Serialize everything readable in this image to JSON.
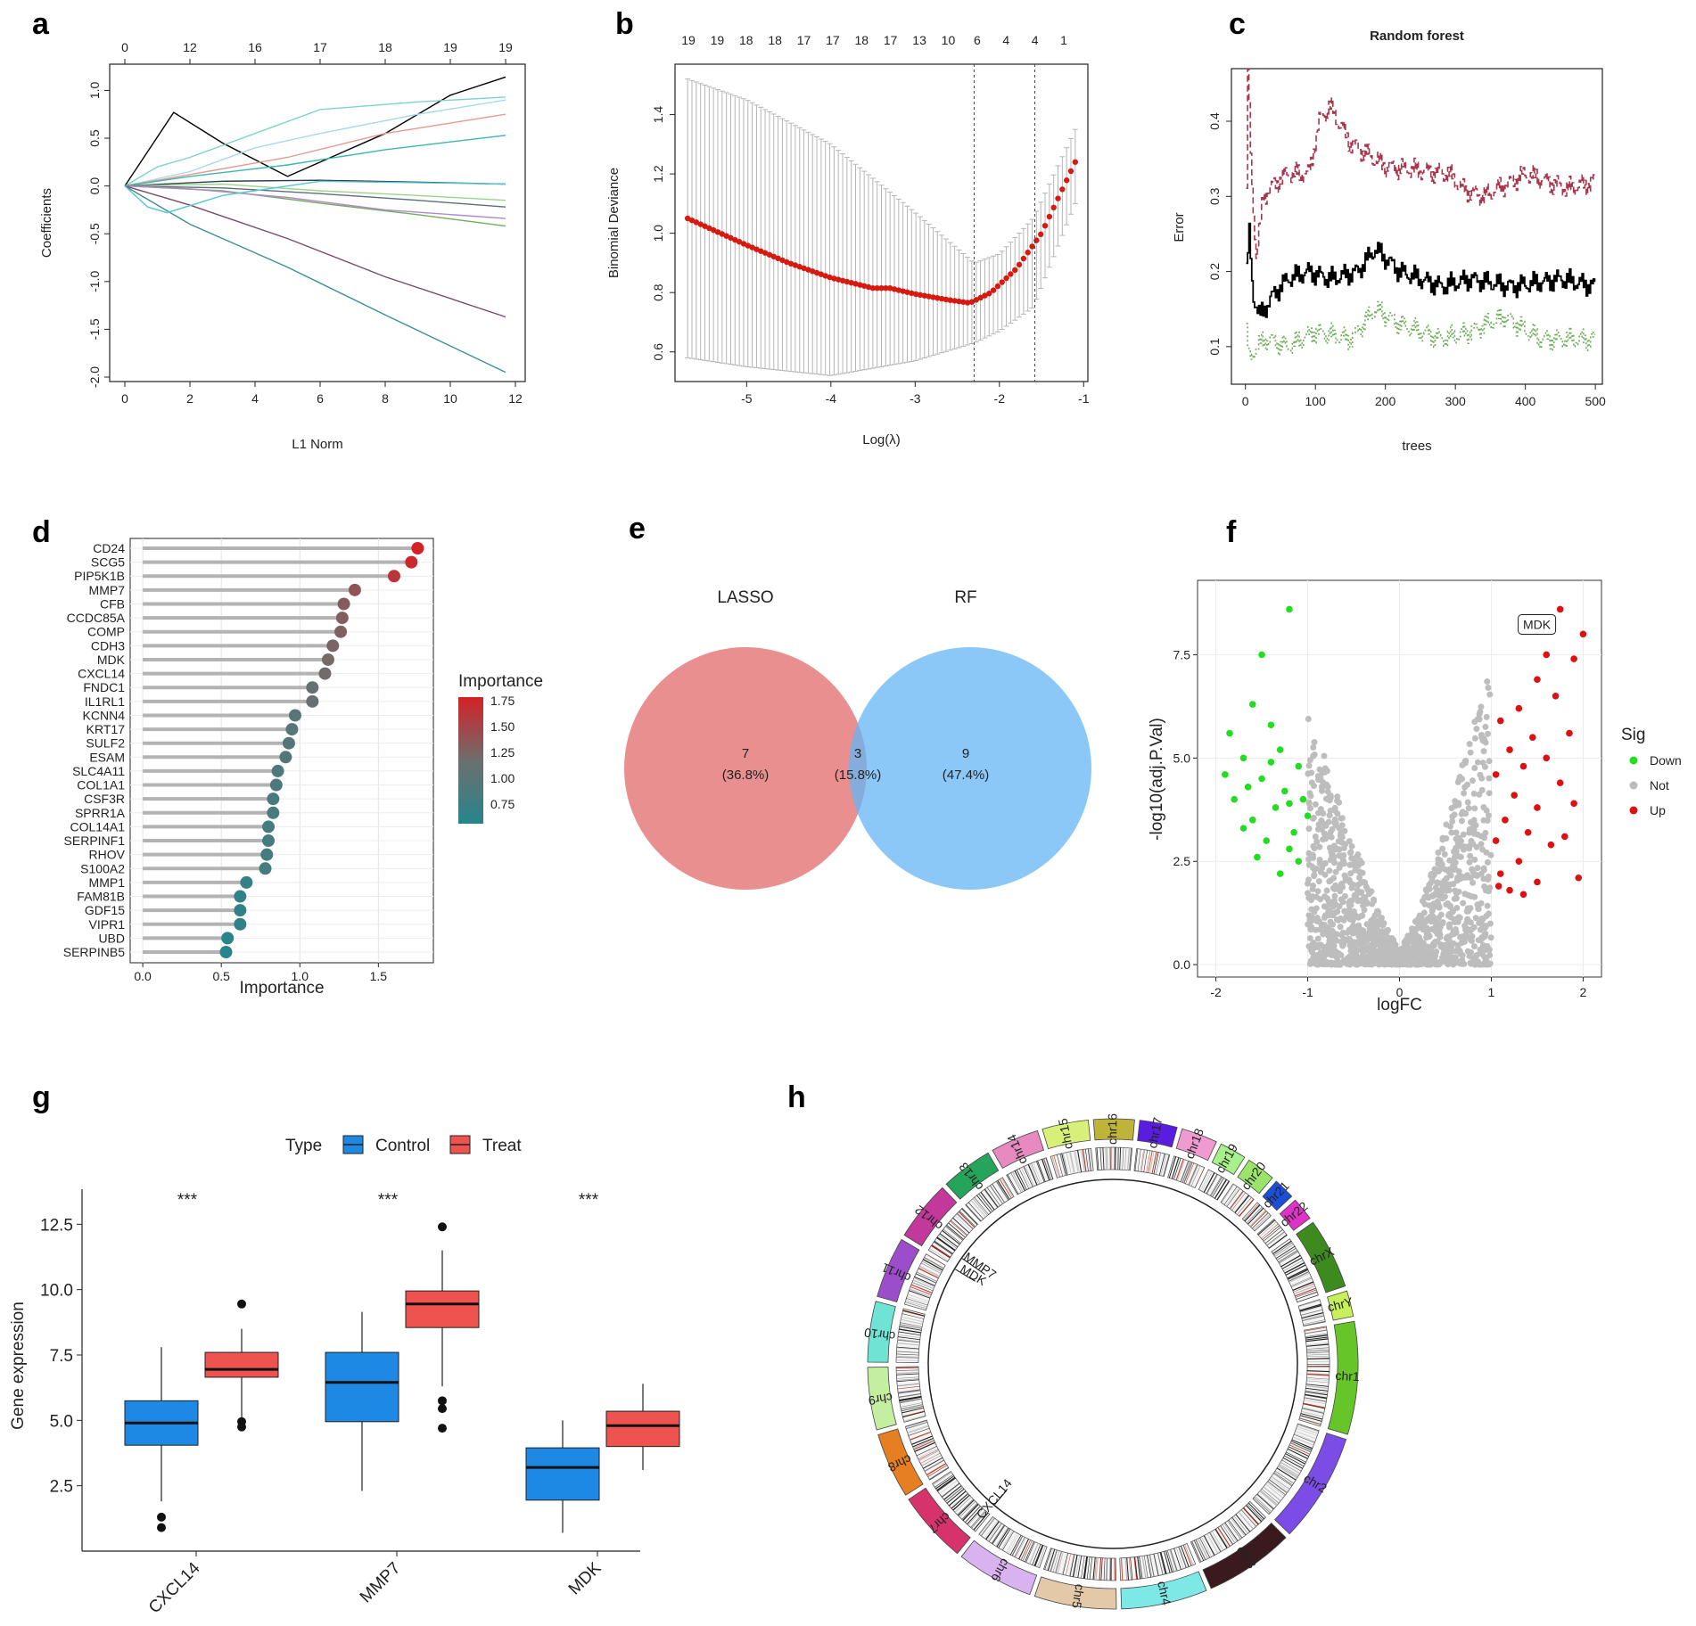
{
  "panel_labels": [
    "a",
    "b",
    "c",
    "d",
    "e",
    "f",
    "g",
    "h"
  ],
  "chart_data": [
    {
      "panel": "a",
      "type": "line",
      "title": "",
      "xlabel": "L1 Norm",
      "ylabel": "Coefficients",
      "xlim": [
        0,
        12
      ],
      "ylim": [
        -2.0,
        1.2
      ],
      "xticks": [
        "0",
        "2",
        "4",
        "6",
        "8",
        "10",
        "12"
      ],
      "yticks": [
        "-2.0",
        "-1.5",
        "-1.0",
        "-0.5",
        "0.0",
        "0.5",
        "1.0"
      ],
      "top_ticks": [
        "0",
        "12",
        "16",
        "17",
        "18",
        "19",
        "19"
      ],
      "series": [
        {
          "name": "s1",
          "color": "#000000",
          "x": [
            0,
            1.5,
            3,
            5,
            8,
            10,
            11.7
          ],
          "y": [
            0,
            0.77,
            0.45,
            0.1,
            0.55,
            0.95,
            1.14
          ]
        },
        {
          "name": "s2",
          "color": "#7fd3c9",
          "x": [
            0,
            1,
            2,
            4,
            6,
            9,
            11.7
          ],
          "y": [
            0,
            0.2,
            0.3,
            0.55,
            0.8,
            0.88,
            0.93
          ]
        },
        {
          "name": "s3",
          "color": "#a7d8ee",
          "x": [
            0,
            2,
            4,
            6,
            9,
            11.7
          ],
          "y": [
            0,
            0.15,
            0.4,
            0.55,
            0.75,
            0.9
          ]
        },
        {
          "name": "s4",
          "color": "#e39a8f",
          "x": [
            0,
            2,
            5,
            8,
            11.7
          ],
          "y": [
            0,
            0.12,
            0.3,
            0.55,
            0.75
          ]
        },
        {
          "name": "s5",
          "color": "#3fb5b0",
          "x": [
            0,
            2,
            5,
            8,
            11.7
          ],
          "y": [
            0,
            0.1,
            0.22,
            0.38,
            0.53
          ]
        },
        {
          "name": "s6",
          "color": "#2c3e50",
          "x": [
            0,
            3,
            6,
            9,
            11.7
          ],
          "y": [
            0,
            0.05,
            0.06,
            0.04,
            0.02
          ]
        },
        {
          "name": "s7",
          "color": "#9bd48a",
          "x": [
            0,
            3,
            6,
            9,
            11.7
          ],
          "y": [
            0,
            0.02,
            -0.05,
            -0.1,
            -0.15
          ]
        },
        {
          "name": "s8",
          "color": "#5d6d7e",
          "x": [
            0,
            3,
            6,
            9,
            11.7
          ],
          "y": [
            0,
            -0.02,
            -0.08,
            -0.15,
            -0.22
          ]
        },
        {
          "name": "s9",
          "color": "#6fae5b",
          "x": [
            0,
            3,
            6,
            9,
            11.7
          ],
          "y": [
            0,
            -0.05,
            -0.18,
            -0.3,
            -0.42
          ]
        },
        {
          "name": "s10",
          "color": "#b388c9",
          "x": [
            0,
            2,
            5,
            8,
            11.7
          ],
          "y": [
            0,
            -0.03,
            -0.12,
            -0.25,
            -0.34
          ]
        },
        {
          "name": "s11",
          "color": "#7c4a6b",
          "x": [
            0,
            2,
            5,
            8,
            11.7
          ],
          "y": [
            0,
            -0.2,
            -0.55,
            -0.95,
            -1.37
          ]
        },
        {
          "name": "s12",
          "color": "#3d8f9a",
          "x": [
            0,
            2,
            5,
            8,
            11.7
          ],
          "y": [
            0,
            -0.4,
            -0.85,
            -1.35,
            -1.95
          ]
        },
        {
          "name": "s13",
          "color": "#58c7d6",
          "x": [
            0,
            0.7,
            1.3,
            3,
            6,
            11.7
          ],
          "y": [
            0,
            -0.22,
            -0.28,
            -0.1,
            0.05,
            0.02
          ]
        }
      ]
    },
    {
      "panel": "b",
      "type": "line",
      "title": "",
      "xlabel": "Log(λ)",
      "ylabel": "Binomial Deviance",
      "xlim": [
        -5.85,
        -0.95
      ],
      "ylim": [
        0.5,
        1.57
      ],
      "xticks": [
        "-5",
        "-4",
        "-3",
        "-2",
        "-1"
      ],
      "yticks": [
        "0.6",
        "0.8",
        "1.0",
        "1.2",
        "1.4"
      ],
      "top_ticks": [
        "19",
        "19",
        "18",
        "18",
        "17",
        "17",
        "18",
        "17",
        "13",
        "10",
        "6",
        "4",
        "4",
        "1"
      ],
      "vlines": [
        -2.3,
        -1.58
      ],
      "curve": {
        "x": [
          -5.7,
          -5.0,
          -4.5,
          -4.0,
          -3.5,
          -3.3,
          -3.0,
          -2.6,
          -2.35,
          -2.1,
          -1.8,
          -1.5,
          -1.25,
          -1.1
        ],
        "y": [
          1.05,
          0.96,
          0.9,
          0.85,
          0.815,
          0.815,
          0.795,
          0.775,
          0.765,
          0.8,
          0.88,
          1.0,
          1.15,
          1.24
        ]
      },
      "err_upper": {
        "x": [
          -5.7,
          -5.0,
          -4.0,
          -3.0,
          -2.3,
          -2.0,
          -1.6,
          -1.1
        ],
        "y": [
          1.52,
          1.45,
          1.3,
          1.07,
          0.9,
          0.93,
          1.05,
          1.35
        ]
      },
      "err_lower": {
        "x": [
          -5.7,
          -5.0,
          -4.0,
          -3.0,
          -2.3,
          -2.0,
          -1.6,
          -1.1
        ],
        "y": [
          0.58,
          0.55,
          0.52,
          0.57,
          0.63,
          0.67,
          0.75,
          1.1
        ]
      }
    },
    {
      "panel": "c",
      "type": "line",
      "title": "Random forest",
      "xlabel": "trees",
      "ylabel": "Error",
      "xlim": [
        -20,
        510
      ],
      "ylim": [
        0.05,
        0.47
      ],
      "xticks": [
        "0",
        "100",
        "200",
        "300",
        "400",
        "500"
      ],
      "yticks": [
        "0.1",
        "0.2",
        "0.3",
        "0.4"
      ],
      "series": [
        {
          "name": "oob",
          "color": "#000000",
          "x": [
            1,
            5,
            10,
            20,
            40,
            60,
            90,
            120,
            160,
            185,
            220,
            280,
            320,
            380,
            450,
            500
          ],
          "y": [
            0.2,
            0.25,
            0.17,
            0.14,
            0.17,
            0.19,
            0.2,
            0.19,
            0.2,
            0.23,
            0.2,
            0.18,
            0.19,
            0.18,
            0.19,
            0.18
          ]
        },
        {
          "name": "class1",
          "color": "#a8374e",
          "x": [
            1,
            3,
            8,
            15,
            25,
            45,
            60,
            90,
            105,
            120,
            150,
            200,
            290,
            310,
            340,
            400,
            460,
            500
          ],
          "y": [
            0.3,
            0.47,
            0.33,
            0.22,
            0.3,
            0.32,
            0.33,
            0.33,
            0.4,
            0.42,
            0.37,
            0.34,
            0.33,
            0.31,
            0.3,
            0.33,
            0.31,
            0.32
          ]
        },
        {
          "name": "class2",
          "color": "#6fae5b",
          "x": [
            1,
            5,
            15,
            30,
            60,
            100,
            150,
            185,
            220,
            280,
            320,
            370,
            420,
            500
          ],
          "y": [
            0.12,
            0.08,
            0.1,
            0.11,
            0.1,
            0.12,
            0.11,
            0.15,
            0.13,
            0.11,
            0.12,
            0.14,
            0.11,
            0.11
          ]
        }
      ]
    },
    {
      "panel": "d",
      "type": "lollipop",
      "title": "",
      "xlabel": "Importance",
      "ylabel": "",
      "xlim": [
        -0.08,
        1.85
      ],
      "xticks": [
        "0.0",
        "0.5",
        "1.0",
        "1.5"
      ],
      "legend_title": "Importance",
      "legend_ticks": [
        "1.75",
        "1.50",
        "1.25",
        "1.00",
        "0.75"
      ],
      "genes": [
        "CD24",
        "SCG5",
        "PIP5K1B",
        "MMP7",
        "CFB",
        "CCDC85A",
        "COMP",
        "CDH3",
        "MDK",
        "CXCL14",
        "FNDC1",
        "IL1RL1",
        "KCNN4",
        "KRT17",
        "SULF2",
        "ESAM",
        "SLC4A11",
        "COL1A1",
        "CSF3R",
        "SPRR1A",
        "COL14A1",
        "SERPINF1",
        "RHOV",
        "S100A2",
        "MMP1",
        "FAM81B",
        "GDF15",
        "VIPR1",
        "UBD",
        "SERPINB5"
      ],
      "values": [
        1.75,
        1.71,
        1.6,
        1.35,
        1.28,
        1.27,
        1.26,
        1.21,
        1.18,
        1.16,
        1.08,
        1.08,
        0.97,
        0.95,
        0.93,
        0.91,
        0.86,
        0.85,
        0.83,
        0.83,
        0.8,
        0.8,
        0.79,
        0.78,
        0.66,
        0.62,
        0.62,
        0.62,
        0.54,
        0.53
      ]
    },
    {
      "panel": "e",
      "type": "venn",
      "sets": [
        "LASSO",
        "RF"
      ],
      "regions": [
        {
          "count": "7",
          "pct": "(36.8%)"
        },
        {
          "count": "3",
          "pct": "(15.8%)"
        },
        {
          "count": "9",
          "pct": "(47.4%)"
        }
      ],
      "colors": {
        "LASSO": "#e57373",
        "RF": "#64b5f6",
        "LASSO_label": "#a31515",
        "RF_label": "#2e6fae"
      }
    },
    {
      "panel": "f",
      "type": "scatter",
      "title": "",
      "xlabel": "logFC",
      "ylabel": "-log10(adj.P.Val)",
      "xlim": [
        -2.2,
        2.2
      ],
      "ylim": [
        -0.3,
        9.3
      ],
      "xticks": [
        "-2",
        "-1",
        "0",
        "1",
        "2"
      ],
      "yticks": [
        "0.0",
        "2.5",
        "5.0",
        "7.5"
      ],
      "legend_title": "Sig",
      "legend": [
        {
          "name": "Down",
          "color": "#22dd22"
        },
        {
          "name": "Not",
          "color": "#bbbbbb"
        },
        {
          "name": "Up",
          "color": "#dd1111"
        }
      ],
      "annotation": {
        "text": "MDK",
        "x": 1.72,
        "y": 8.6
      },
      "down_points": [
        [
          -1.2,
          8.6
        ],
        [
          -1.5,
          7.5
        ],
        [
          -1.6,
          6.3
        ],
        [
          -1.4,
          5.8
        ],
        [
          -1.3,
          5.2
        ],
        [
          -1.7,
          5.0
        ],
        [
          -1.5,
          4.5
        ],
        [
          -1.1,
          4.8
        ],
        [
          -1.25,
          4.2
        ],
        [
          -1.8,
          4.0
        ],
        [
          -1.35,
          3.8
        ],
        [
          -1.05,
          4.0
        ],
        [
          -1.6,
          3.5
        ],
        [
          -1.15,
          3.2
        ],
        [
          -1.45,
          3.0
        ],
        [
          -1.7,
          3.3
        ],
        [
          -1.2,
          2.8
        ],
        [
          -1.55,
          2.6
        ],
        [
          -1.1,
          2.5
        ],
        [
          -1.3,
          2.2
        ],
        [
          -1.9,
          4.6
        ],
        [
          -1.0,
          3.6
        ],
        [
          -1.4,
          4.9
        ],
        [
          -1.65,
          4.3
        ],
        [
          -1.2,
          3.9
        ],
        [
          -1.85,
          5.6
        ]
      ],
      "up_points": [
        [
          1.75,
          8.6
        ],
        [
          2.0,
          8.0
        ],
        [
          1.6,
          7.5
        ],
        [
          1.9,
          7.4
        ],
        [
          1.5,
          6.9
        ],
        [
          1.7,
          6.5
        ],
        [
          1.3,
          6.2
        ],
        [
          1.1,
          5.9
        ],
        [
          1.45,
          5.5
        ],
        [
          1.85,
          5.6
        ],
        [
          1.2,
          5.2
        ],
        [
          1.6,
          5.0
        ],
        [
          1.35,
          4.8
        ],
        [
          1.05,
          4.6
        ],
        [
          1.75,
          4.4
        ],
        [
          1.25,
          4.1
        ],
        [
          1.5,
          3.8
        ],
        [
          1.9,
          3.9
        ],
        [
          1.15,
          3.5
        ],
        [
          1.4,
          3.2
        ],
        [
          1.05,
          3.0
        ],
        [
          1.65,
          2.9
        ],
        [
          1.3,
          2.5
        ],
        [
          1.1,
          2.2
        ],
        [
          1.5,
          2.0
        ],
        [
          1.95,
          2.1
        ],
        [
          1.2,
          1.8
        ],
        [
          1.08,
          1.9
        ],
        [
          1.35,
          1.7
        ],
        [
          1.8,
          3.1
        ]
      ],
      "not_envelope": {
        "x": [
          -1.0,
          -0.8,
          -0.6,
          -0.4,
          -0.2,
          0.0,
          0.2,
          0.4,
          0.6,
          0.8,
          1.0
        ],
        "y": [
          6.2,
          5.0,
          3.6,
          2.4,
          1.2,
          0.3,
          1.2,
          2.6,
          4.2,
          5.8,
          7.4
        ]
      }
    },
    {
      "panel": "g",
      "type": "box",
      "title": "",
      "xlabel": "",
      "ylabel": "Gene expression",
      "ylim": [
        0,
        13.5
      ],
      "yticks": [
        "2.5",
        "5.0",
        "7.5",
        "10.0",
        "12.5"
      ],
      "legend_title": "Type",
      "legend": [
        {
          "name": "Control",
          "color": "#1e88e5"
        },
        {
          "name": "Treat",
          "color": "#ef5350"
        }
      ],
      "categories": [
        "CXCL14",
        "MMP7",
        "MDK"
      ],
      "significance": [
        "***",
        "***",
        "***"
      ],
      "series": [
        {
          "name": "Control",
          "boxes": [
            {
              "q1": 4.05,
              "median": 4.9,
              "q3": 5.75,
              "whislo": 1.9,
              "whishi": 7.8,
              "fliers": [
                1.3,
                0.9
              ]
            },
            {
              "q1": 4.95,
              "median": 6.45,
              "q3": 7.6,
              "whislo": 2.3,
              "whishi": 9.15,
              "fliers": []
            },
            {
              "q1": 1.95,
              "median": 3.2,
              "q3": 3.95,
              "whislo": 0.7,
              "whishi": 5.0,
              "fliers": []
            }
          ]
        },
        {
          "name": "Treat",
          "boxes": [
            {
              "q1": 6.65,
              "median": 6.95,
              "q3": 7.6,
              "whislo": 5.05,
              "whishi": 8.5,
              "fliers": [
                9.45,
                4.95,
                4.75
              ]
            },
            {
              "q1": 8.55,
              "median": 9.45,
              "q3": 9.95,
              "whislo": 6.3,
              "whishi": 11.5,
              "fliers": [
                12.4,
                5.75,
                5.45,
                4.7
              ]
            },
            {
              "q1": 4.0,
              "median": 4.8,
              "q3": 5.35,
              "whislo": 3.1,
              "whishi": 6.4,
              "fliers": []
            }
          ]
        }
      ]
    },
    {
      "panel": "h",
      "type": "circos",
      "chromosomes": [
        {
          "name": "chr1",
          "color": "#66c528"
        },
        {
          "name": "chr2",
          "color": "#7b4de6"
        },
        {
          "name": "chr3",
          "color": "#3a1a1f"
        },
        {
          "name": "chr4",
          "color": "#7ee8e6"
        },
        {
          "name": "chr5",
          "color": "#e3c9a8"
        },
        {
          "name": "chr6",
          "color": "#d9b3f0"
        },
        {
          "name": "chr7",
          "color": "#d6336c"
        },
        {
          "name": "chr8",
          "color": "#e67e22"
        },
        {
          "name": "chr9",
          "color": "#c5efa0"
        },
        {
          "name": "chr10",
          "color": "#6fe3d4"
        },
        {
          "name": "chr11",
          "color": "#9b4dca"
        },
        {
          "name": "chr12",
          "color": "#c2389b"
        },
        {
          "name": "chr13",
          "color": "#25a55a"
        },
        {
          "name": "chr14",
          "color": "#e68ac0"
        },
        {
          "name": "chr15",
          "color": "#d8f07a"
        },
        {
          "name": "chr16",
          "color": "#bfb43a"
        },
        {
          "name": "chr17",
          "color": "#5a1de0"
        },
        {
          "name": "chr18",
          "color": "#ef9ad0"
        },
        {
          "name": "chr19",
          "color": "#a8f08a"
        },
        {
          "name": "chr20",
          "color": "#9be36b"
        },
        {
          "name": "chr21",
          "color": "#1d4fd6"
        },
        {
          "name": "chr22",
          "color": "#e032c6"
        },
        {
          "name": "chrX",
          "color": "#3d8a1e"
        },
        {
          "name": "chrY",
          "color": "#c8f05a"
        }
      ],
      "labels": [
        "MMP7",
        "MDK",
        "CXCL14"
      ]
    }
  ]
}
